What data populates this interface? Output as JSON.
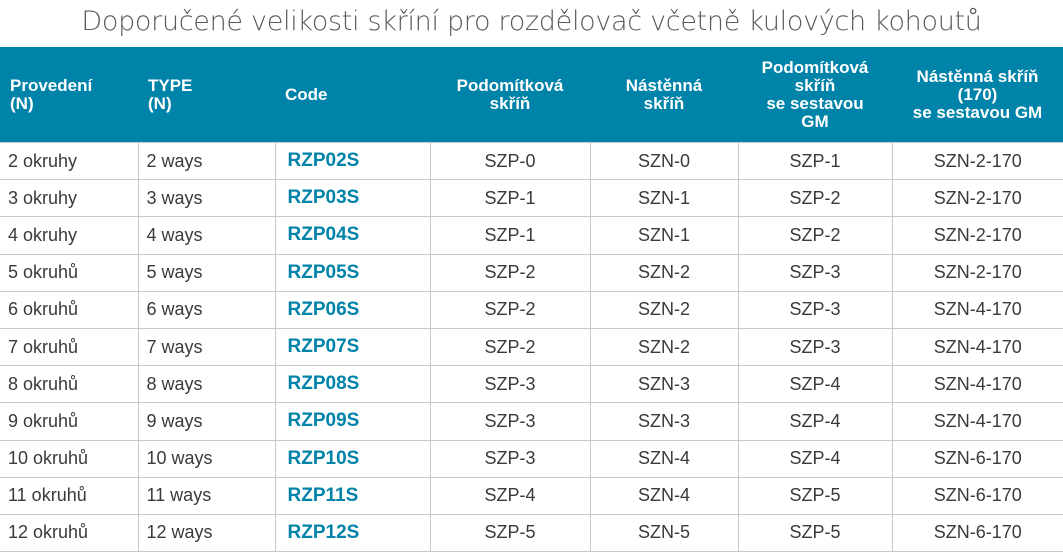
{
  "title": "Doporučené velikosti skříní pro rozdělovač včetně kulových kohoutů",
  "colors": {
    "header_bg": "#0083a9",
    "code_text": "#0083a9"
  },
  "headers": [
    "Provedení\n(N)",
    "TYPE\n(N)",
    "Code",
    "Podomítková\nskříň",
    "Nástěnná\nskříň",
    "Podomítková\nskříň\nse sestavou\nGM",
    "Nástěnná skříň\n(170)\nse sestavou GM"
  ],
  "rows": [
    [
      "2 okruhy",
      "2 ways",
      "RZP02S",
      "SZP-0",
      "SZN-0",
      "SZP-1",
      "SZN-2-170"
    ],
    [
      "3 okruhy",
      "3 ways",
      "RZP03S",
      "SZP-1",
      "SZN-1",
      "SZP-2",
      "SZN-2-170"
    ],
    [
      "4 okruhy",
      "4 ways",
      "RZP04S",
      "SZP-1",
      "SZN-1",
      "SZP-2",
      "SZN-2-170"
    ],
    [
      "5 okruhů",
      "5 ways",
      "RZP05S",
      "SZP-2",
      "SZN-2",
      "SZP-3",
      "SZN-2-170"
    ],
    [
      "6 okruhů",
      "6 ways",
      "RZP06S",
      "SZP-2",
      "SZN-2",
      "SZP-3",
      "SZN-4-170"
    ],
    [
      "7 okruhů",
      "7 ways",
      "RZP07S",
      "SZP-2",
      "SZN-2",
      "SZP-3",
      "SZN-4-170"
    ],
    [
      "8 okruhů",
      "8 ways",
      "RZP08S",
      "SZP-3",
      "SZN-3",
      "SZP-4",
      "SZN-4-170"
    ],
    [
      "9 okruhů",
      "9 ways",
      "RZP09S",
      "SZP-3",
      "SZN-3",
      "SZP-4",
      "SZN-4-170"
    ],
    [
      "10 okruhů",
      "10 ways",
      "RZP10S",
      "SZP-3",
      "SZN-4",
      "SZP-4",
      "SZN-6-170"
    ],
    [
      "11 okruhů",
      "11 ways",
      "RZP11S",
      "SZP-4",
      "SZN-4",
      "SZP-5",
      "SZN-6-170"
    ],
    [
      "12 okruhů",
      "12 ways",
      "RZP12S",
      "SZP-5",
      "SZN-5",
      "SZP-5",
      "SZN-6-170"
    ]
  ]
}
